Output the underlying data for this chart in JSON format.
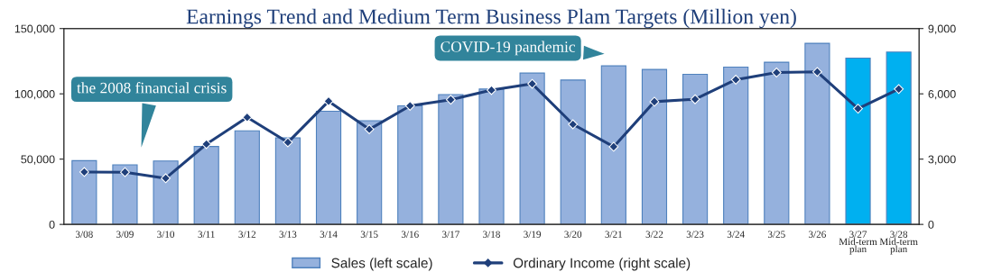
{
  "chart_data": {
    "type": "bar",
    "title": "Earnings Trend and Medium Term Business Plam Targets (Million yen)",
    "categories": [
      "3/08",
      "3/09",
      "3/10",
      "3/11",
      "3/12",
      "3/13",
      "3/14",
      "3/15",
      "3/16",
      "3/17",
      "3/18",
      "3/19",
      "3/20",
      "3/21",
      "3/22",
      "3/23",
      "3/24",
      "3/25",
      "3/26",
      "3/27\nMid-term\nplan",
      "3/28\nMid-term\nplan"
    ],
    "series": [
      {
        "name": "Sales (left scale)",
        "color": "#95b1dd",
        "colors": [
          "#95b1dd",
          "#95b1dd",
          "#95b1dd",
          "#95b1dd",
          "#95b1dd",
          "#95b1dd",
          "#95b1dd",
          "#95b1dd",
          "#95b1dd",
          "#95b1dd",
          "#95b1dd",
          "#95b1dd",
          "#95b1dd",
          "#95b1dd",
          "#95b1dd",
          "#95b1dd",
          "#95b1dd",
          "#95b1dd",
          "#95b1dd",
          "#00b0f0",
          "#00b0f0"
        ],
        "values": [
          48800,
          45600,
          48600,
          59700,
          71700,
          66300,
          86700,
          79400,
          90800,
          99400,
          103700,
          115900,
          110600,
          121400,
          118700,
          115000,
          120500,
          124200,
          138700,
          127400,
          132000
        ]
      },
      {
        "name": "Ordinary Income (right scale)",
        "type": "line",
        "axis": "y2",
        "color": "#1f3f7a",
        "marker": "diamond",
        "values": [
          2410,
          2400,
          2120,
          3690,
          4920,
          3770,
          5660,
          4370,
          5450,
          5730,
          6170,
          6460,
          4600,
          3570,
          5640,
          5750,
          6650,
          6980,
          7010,
          5320,
          6220
        ]
      }
    ],
    "ylim": [
      0,
      150000
    ],
    "yticks": [
      {
        "value": 0,
        "label": "0"
      },
      {
        "value": 50000,
        "label": "50,000"
      },
      {
        "value": 100000,
        "label": "100,000"
      },
      {
        "value": 150000,
        "label": "150,000"
      }
    ],
    "y2lim": [
      0,
      9000
    ],
    "y2ticks": [
      {
        "value": 0,
        "label": "0"
      },
      {
        "value": 3000,
        "label": "3,000"
      },
      {
        "value": 6000,
        "label": "6,000"
      },
      {
        "value": 9000,
        "label": "9,000"
      }
    ],
    "annotations": [
      "the 2008 financial crisis",
      "COVID-19 pandemic"
    ],
    "legend": "bottom",
    "grid": false
  }
}
